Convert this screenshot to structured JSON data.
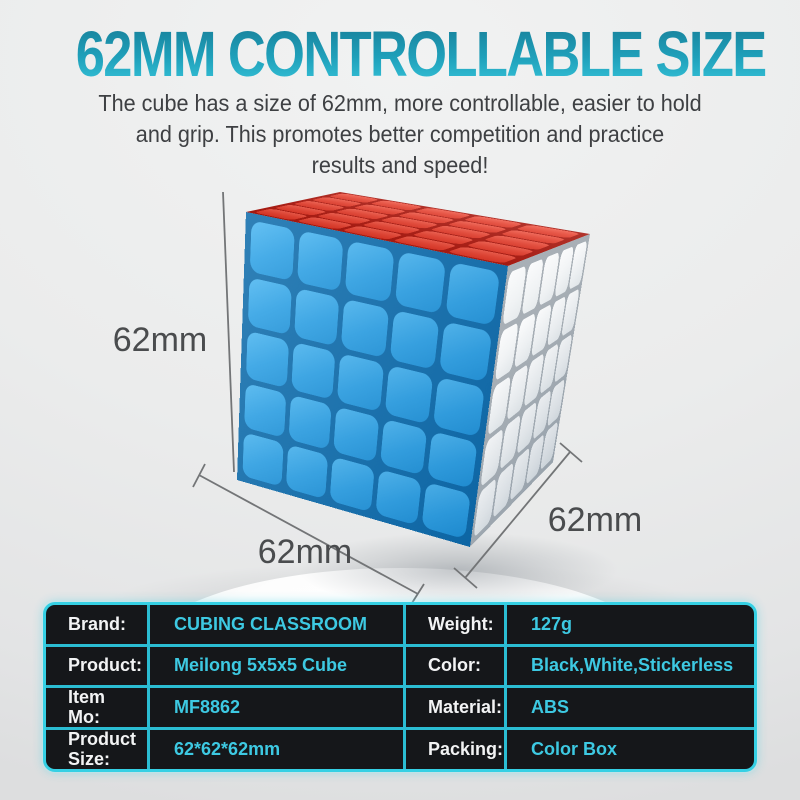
{
  "header": {
    "title": "62MM CONTROLLABLE SIZE"
  },
  "description": {
    "lines": [
      "The cube has a size of 62mm, more controllable, easier to hold",
      "and grip. This promotes better competition and practice",
      "results and speed!"
    ]
  },
  "dimension_labels": {
    "height": "62mm",
    "width": "62mm",
    "depth": "62mm"
  },
  "cube": {
    "kind": "5x5x5 speed cube, stickerless",
    "top_face_color": "#e64534",
    "front_face_color": "#2da2e6",
    "side_face_color": "#f4f6f7"
  },
  "spec_table": {
    "accent_color": "#2bbdd3",
    "background_color": "#15171a",
    "label_color": "#f2f3f4",
    "value_color": "#3dc9e2",
    "rows": [
      {
        "cells": [
          {
            "label": "Brand:",
            "value": "CUBING CLASSROOM"
          },
          {
            "label": "Weight:",
            "value": "127g"
          }
        ]
      },
      {
        "cells": [
          {
            "label": "Product:",
            "value": "Meilong 5x5x5 Cube"
          },
          {
            "label": "Color:",
            "value": "Black,White,Stickerless"
          }
        ]
      },
      {
        "cells": [
          {
            "label": "Item Mo:",
            "value": "MF8862"
          },
          {
            "label": "Material:",
            "value": "ABS"
          }
        ]
      },
      {
        "cells": [
          {
            "label": "Product Size:",
            "value": "62*62*62mm"
          },
          {
            "label": "Packing:",
            "value": "Color Box"
          }
        ]
      }
    ]
  }
}
